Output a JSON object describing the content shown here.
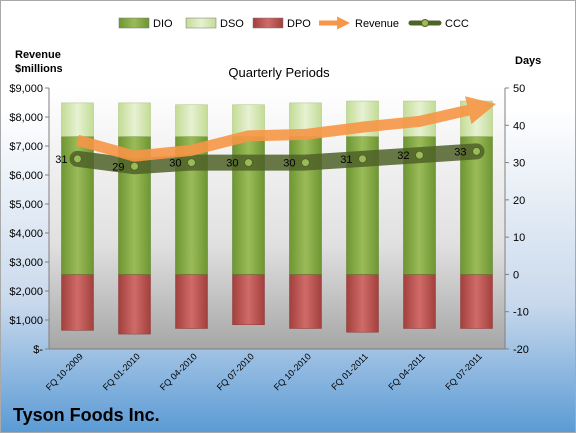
{
  "chart_data": {
    "type": "bar",
    "title": "Quarterly Periods",
    "left_axis": {
      "label_line1": "Revenue",
      "label_line2": "$millions",
      "ylim": [
        0,
        9000
      ],
      "ticks": [
        "$-",
        "$1,000",
        "$2,000",
        "$3,000",
        "$4,000",
        "$5,000",
        "$6,000",
        "$7,000",
        "$8,000",
        "$9,000"
      ]
    },
    "right_axis": {
      "label": "Days",
      "ylim": [
        -20,
        50
      ],
      "ticks": [
        "-20",
        "-10",
        "0",
        "10",
        "20",
        "30",
        "40",
        "50"
      ]
    },
    "categories": [
      "FQ 10-2009",
      "FQ 01-2010",
      "FQ 04-2010",
      "FQ 07-2010",
      "FQ 10-2010",
      "FQ 01-2011",
      "FQ 04-2011",
      "FQ 07-2011"
    ],
    "legend": [
      "DIO",
      "DSO",
      "DPO",
      "Revenue",
      "CCC"
    ],
    "legend_position": "top",
    "grid": false,
    "series": [
      {
        "name": "DIO",
        "axis": "days",
        "stack": "base",
        "values": [
          37,
          37,
          37,
          37,
          37,
          37,
          37,
          37
        ],
        "color": "#7aa33a"
      },
      {
        "name": "DSO",
        "axis": "days",
        "stack": "top",
        "values": [
          9,
          9,
          8.5,
          8.5,
          9,
          9.5,
          9.5,
          9.5
        ],
        "color": "#d5e8b0"
      },
      {
        "name": "DPO",
        "axis": "days",
        "stack": "negative",
        "values": [
          -15,
          -16,
          -14.5,
          -13.5,
          -14.5,
          -15.5,
          -14.5,
          -14.5
        ],
        "color": "#c0504d"
      },
      {
        "name": "Revenue",
        "axis": "revenue",
        "type": "line",
        "values": [
          7200,
          6650,
          6850,
          7350,
          7400,
          7650,
          7850,
          8300
        ],
        "color": "#f79646"
      },
      {
        "name": "CCC",
        "axis": "days",
        "type": "line",
        "values": [
          31,
          29,
          30,
          30,
          30,
          31,
          32,
          33
        ],
        "labels": [
          "31",
          "29",
          "30",
          "30",
          "30",
          "31",
          "32",
          "33"
        ],
        "color": "#4f6228"
      }
    ]
  },
  "footer": {
    "company": "Tyson Foods Inc."
  }
}
